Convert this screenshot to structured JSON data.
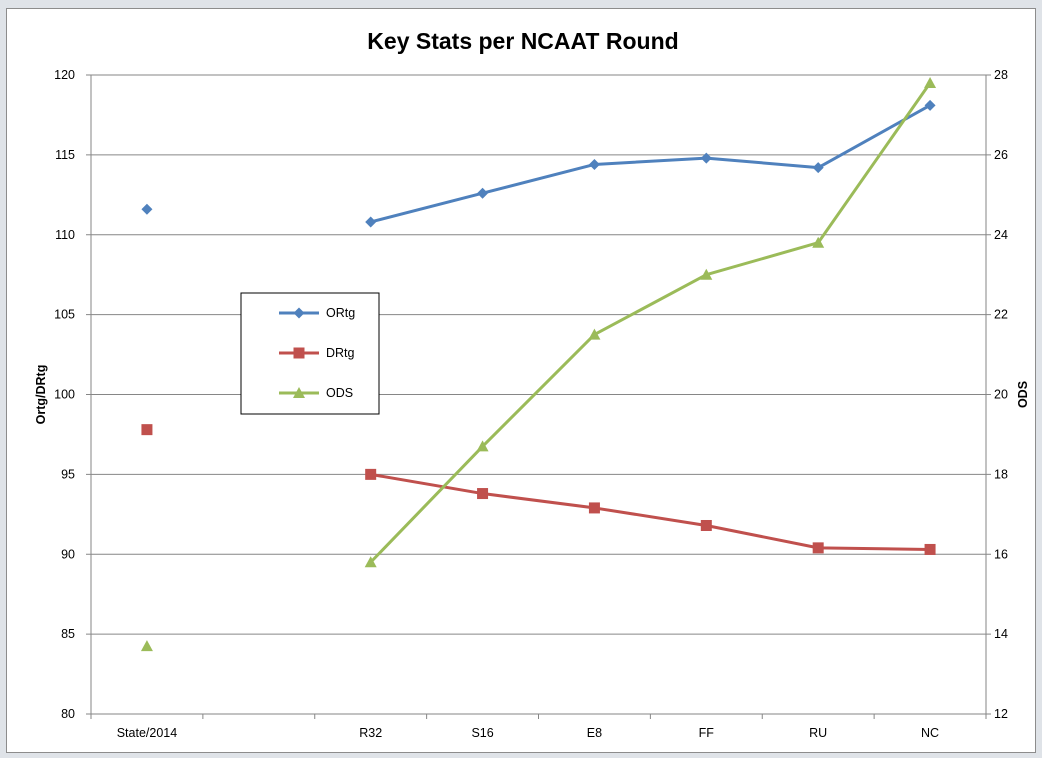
{
  "chart_data": {
    "type": "line",
    "title": "Key Stats per NCAAT Round",
    "categories": [
      "State/2014",
      "",
      "R32",
      "S16",
      "E8",
      "FF",
      "RU",
      "NC"
    ],
    "y_left": {
      "label": "Ortg/DRtg",
      "lim": [
        80,
        120
      ],
      "ticks": [
        80,
        85,
        90,
        95,
        100,
        105,
        110,
        115,
        120
      ]
    },
    "y_right": {
      "label": "ODS",
      "lim": [
        12,
        28
      ],
      "ticks": [
        12,
        14,
        16,
        18,
        20,
        22,
        24,
        26,
        28
      ]
    },
    "grid": true,
    "legend_position": "left-middle",
    "series": [
      {
        "name": "ORtg",
        "axis": "left",
        "marker": "diamond",
        "color": "#4f81bd",
        "values": [
          111.6,
          null,
          110.8,
          112.6,
          114.4,
          114.8,
          114.2,
          118.1
        ]
      },
      {
        "name": "DRtg",
        "axis": "left",
        "marker": "square",
        "color": "#c0504d",
        "values": [
          97.8,
          null,
          95.0,
          93.8,
          92.9,
          91.8,
          90.4,
          90.3
        ]
      },
      {
        "name": "ODS",
        "axis": "right",
        "marker": "triangle",
        "color": "#9bbb59",
        "values": [
          13.7,
          null,
          15.8,
          18.7,
          21.5,
          23.0,
          23.8,
          27.8
        ]
      }
    ]
  }
}
